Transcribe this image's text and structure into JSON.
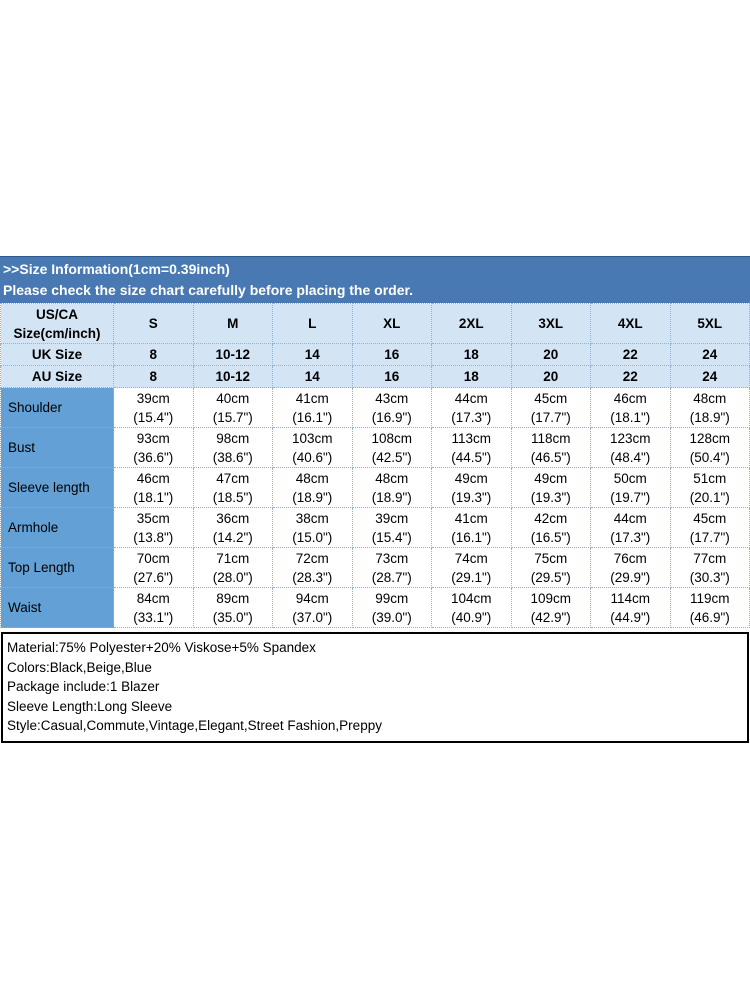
{
  "banner": {
    "line1": ">>Size Information(1cm=0.39inch)",
    "line2": "Please check the size chart carefully before placing the order."
  },
  "table": {
    "corner": {
      "line1": "US/CA",
      "line2": "Size(cm/inch)"
    },
    "size_headers": [
      "S",
      "M",
      "L",
      "XL",
      "2XL",
      "3XL",
      "4XL",
      "5XL"
    ],
    "uk_row": {
      "label": "UK Size",
      "values": [
        "8",
        "10-12",
        "14",
        "16",
        "18",
        "20",
        "22",
        "24"
      ]
    },
    "au_row": {
      "label": "AU Size",
      "values": [
        "8",
        "10-12",
        "14",
        "16",
        "18",
        "20",
        "22",
        "24"
      ]
    },
    "measurements": [
      {
        "label": "Shoulder",
        "cells": [
          {
            "cm": "39cm",
            "inch": "(15.4\")"
          },
          {
            "cm": "40cm",
            "inch": "(15.7\")"
          },
          {
            "cm": "41cm",
            "inch": "(16.1\")"
          },
          {
            "cm": "43cm",
            "inch": "(16.9\")"
          },
          {
            "cm": "44cm",
            "inch": "(17.3\")"
          },
          {
            "cm": "45cm",
            "inch": "(17.7\")"
          },
          {
            "cm": "46cm",
            "inch": "(18.1\")"
          },
          {
            "cm": "48cm",
            "inch": "(18.9\")"
          }
        ]
      },
      {
        "label": "Bust",
        "cells": [
          {
            "cm": "93cm",
            "inch": "(36.6\")"
          },
          {
            "cm": "98cm",
            "inch": "(38.6\")"
          },
          {
            "cm": "103cm",
            "inch": "(40.6\")"
          },
          {
            "cm": "108cm",
            "inch": "(42.5\")"
          },
          {
            "cm": "113cm",
            "inch": "(44.5\")"
          },
          {
            "cm": "118cm",
            "inch": "(46.5\")"
          },
          {
            "cm": "123cm",
            "inch": "(48.4\")"
          },
          {
            "cm": "128cm",
            "inch": "(50.4\")"
          }
        ]
      },
      {
        "label": "Sleeve length",
        "cells": [
          {
            "cm": "46cm",
            "inch": "(18.1\")"
          },
          {
            "cm": "47cm",
            "inch": "(18.5\")"
          },
          {
            "cm": "48cm",
            "inch": "(18.9\")"
          },
          {
            "cm": "48cm",
            "inch": "(18.9\")"
          },
          {
            "cm": "49cm",
            "inch": "(19.3\")"
          },
          {
            "cm": "49cm",
            "inch": "(19.3\")"
          },
          {
            "cm": "50cm",
            "inch": "(19.7\")"
          },
          {
            "cm": "51cm",
            "inch": "(20.1\")"
          }
        ]
      },
      {
        "label": "Armhole",
        "cells": [
          {
            "cm": "35cm",
            "inch": "(13.8\")"
          },
          {
            "cm": "36cm",
            "inch": "(14.2\")"
          },
          {
            "cm": "38cm",
            "inch": "(15.0\")"
          },
          {
            "cm": "39cm",
            "inch": "(15.4\")"
          },
          {
            "cm": "41cm",
            "inch": "(16.1\")"
          },
          {
            "cm": "42cm",
            "inch": "(16.5\")"
          },
          {
            "cm": "44cm",
            "inch": "(17.3\")"
          },
          {
            "cm": "45cm",
            "inch": "(17.7\")"
          }
        ]
      },
      {
        "label": "Top Length",
        "cells": [
          {
            "cm": "70cm",
            "inch": "(27.6\")"
          },
          {
            "cm": "71cm",
            "inch": "(28.0\")"
          },
          {
            "cm": "72cm",
            "inch": "(28.3\")"
          },
          {
            "cm": "73cm",
            "inch": "(28.7\")"
          },
          {
            "cm": "74cm",
            "inch": "(29.1\")"
          },
          {
            "cm": "75cm",
            "inch": "(29.5\")"
          },
          {
            "cm": "76cm",
            "inch": "(29.9\")"
          },
          {
            "cm": "77cm",
            "inch": "(30.3\")"
          }
        ]
      },
      {
        "label": "Waist",
        "cells": [
          {
            "cm": "84cm",
            "inch": "(33.1\")"
          },
          {
            "cm": "89cm",
            "inch": "(35.0\")"
          },
          {
            "cm": "94cm",
            "inch": "(37.0\")"
          },
          {
            "cm": "99cm",
            "inch": "(39.0\")"
          },
          {
            "cm": "104cm",
            "inch": "(40.9\")"
          },
          {
            "cm": "109cm",
            "inch": "(42.9\")"
          },
          {
            "cm": "114cm",
            "inch": "(44.9\")"
          },
          {
            "cm": "119cm",
            "inch": "(46.9\")"
          }
        ]
      }
    ]
  },
  "info_box": {
    "lines": [
      "Material:75% Polyester+20% Viskose+5% Spandex",
      "Colors:Black,Beige,Blue",
      "Package include:1 Blazer",
      "Sleeve Length:Long Sleeve",
      "Style:Casual,Commute,Vintage,Elegant,Street Fashion,Preppy"
    ]
  },
  "colors": {
    "banner_bg": "#4879b2",
    "header_bg": "#d3e4f4",
    "label_bg": "#63a0d6",
    "grid": "#8fb2d5",
    "info_border": "#000000"
  }
}
